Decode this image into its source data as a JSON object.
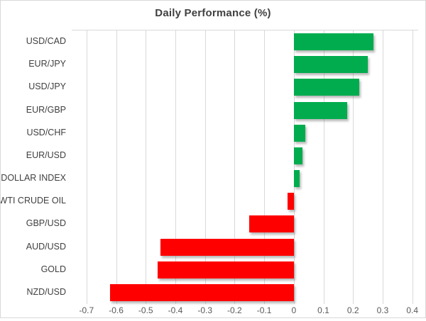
{
  "title": "Daily Performance (%)",
  "chart_data": {
    "type": "bar",
    "orientation": "horizontal",
    "title": "Daily Performance (%)",
    "categories": [
      "USD/CAD",
      "EUR/JPY",
      "USD/JPY",
      "EUR/GBP",
      "USD/CHF",
      "EUR/USD",
      "DOLLAR INDEX",
      "WTI CRUDE OIL",
      "GBP/USD",
      "AUD/USD",
      "GOLD",
      "NZD/USD"
    ],
    "values": [
      0.27,
      0.25,
      0.22,
      0.18,
      0.04,
      0.03,
      0.02,
      -0.02,
      -0.15,
      -0.45,
      -0.46,
      -0.62
    ],
    "xtick_labels": [
      "-0.7",
      "-0.6",
      "-0.5",
      "-0.4",
      "-0.3",
      "-0.2",
      "-0.1",
      "0",
      "0.1",
      "0.2",
      "0.3",
      "0.4"
    ],
    "xlim": [
      -0.75,
      0.42
    ],
    "xlabel": "",
    "ylabel": "",
    "grid": true,
    "legend": false
  },
  "colors": {
    "positive_bar": "#00AC4E",
    "negative_bar": "#FF0000",
    "gridline": "#D9D9D9",
    "title_text": "#404040",
    "category_text": "#404040",
    "tick_text": "#595959",
    "background": "#FFFFFF",
    "border": "#D9D9D9"
  }
}
